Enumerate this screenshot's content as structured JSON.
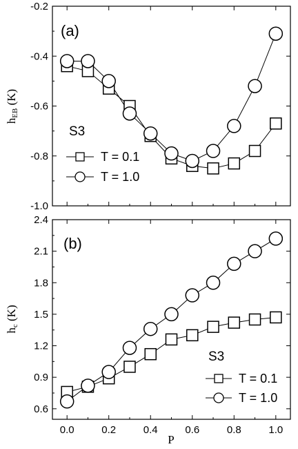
{
  "figure": {
    "xlabel": "P",
    "colors": {
      "line": "#000000",
      "marker_fill": "#ffffff",
      "background": "#ffffff"
    }
  },
  "chart_data": [
    {
      "type": "line",
      "panel_label": "(a)",
      "ylabel": "h_EB (K)",
      "ylabel_main": "h",
      "ylabel_sub": "EB",
      "ylabel_unit": " (K)",
      "xlabel": "P",
      "xlim": [
        -0.07,
        1.07
      ],
      "ylim": [
        -1.0,
        -0.2
      ],
      "x_ticks": [
        0.0,
        0.2,
        0.4,
        0.6,
        0.8,
        1.0
      ],
      "y_ticks": [
        -1.0,
        -0.8,
        -0.6,
        -0.4,
        -0.2
      ],
      "y_tick_labels": [
        "-1.0",
        "-0.8",
        "-0.6",
        "-0.4",
        "-0.2"
      ],
      "show_x_tick_labels": false,
      "grid": false,
      "legend_title": "S3",
      "legend_placement": "left-middle",
      "x": [
        0.0,
        0.1,
        0.2,
        0.3,
        0.4,
        0.5,
        0.6,
        0.7,
        0.8,
        0.9,
        1.0
      ],
      "series": [
        {
          "name": "T = 0.1",
          "marker": "square",
          "values": [
            -0.44,
            -0.46,
            -0.53,
            -0.6,
            -0.72,
            -0.81,
            -0.84,
            -0.85,
            -0.83,
            -0.78,
            -0.67
          ]
        },
        {
          "name": "T = 1.0",
          "marker": "circle",
          "values": [
            -0.42,
            -0.42,
            -0.5,
            -0.63,
            -0.71,
            -0.79,
            -0.82,
            -0.78,
            -0.68,
            -0.52,
            -0.31
          ]
        }
      ]
    },
    {
      "type": "line",
      "panel_label": "(b)",
      "ylabel": "h_c (K)",
      "ylabel_main": "h",
      "ylabel_sub": "c",
      "ylabel_unit": " (K)",
      "xlabel": "P",
      "xlim": [
        -0.07,
        1.07
      ],
      "ylim": [
        0.5,
        2.4
      ],
      "x_ticks": [
        0.0,
        0.2,
        0.4,
        0.6,
        0.8,
        1.0
      ],
      "x_tick_labels": [
        "0.0",
        "0.2",
        "0.4",
        "0.6",
        "0.8",
        "1.0"
      ],
      "y_ticks": [
        0.6,
        0.9,
        1.2,
        1.5,
        1.8,
        2.1,
        2.4
      ],
      "y_tick_labels": [
        "0.6",
        "0.9",
        "1.2",
        "1.5",
        "1.8",
        "2.1",
        "2.4"
      ],
      "show_x_tick_labels": true,
      "grid": false,
      "legend_title": "S3",
      "legend_placement": "bottom-right",
      "x": [
        0.0,
        0.1,
        0.2,
        0.3,
        0.4,
        0.5,
        0.6,
        0.7,
        0.8,
        0.9,
        1.0
      ],
      "series": [
        {
          "name": "T = 0.1",
          "marker": "square",
          "values": [
            0.76,
            0.81,
            0.89,
            1.0,
            1.12,
            1.26,
            1.3,
            1.38,
            1.42,
            1.45,
            1.47
          ]
        },
        {
          "name": "T = 1.0",
          "marker": "circle",
          "values": [
            0.67,
            0.82,
            0.95,
            1.18,
            1.36,
            1.5,
            1.68,
            1.8,
            1.98,
            2.1,
            2.22
          ]
        }
      ]
    }
  ]
}
